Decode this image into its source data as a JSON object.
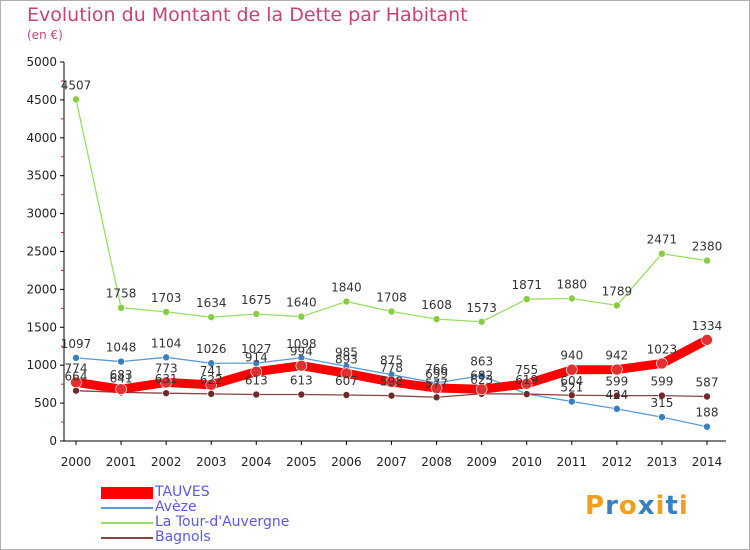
{
  "chart_data": {
    "type": "line",
    "title": "Evolution du Montant de la Dette par Habitant",
    "subtitle": "(en €)",
    "x": [
      "2000",
      "2001",
      "2002",
      "2003",
      "2004",
      "2005",
      "2006",
      "2007",
      "2008",
      "2009",
      "2010",
      "2011",
      "2012",
      "2013",
      "2014"
    ],
    "ylim": [
      0,
      5000
    ],
    "yticks": [
      0,
      500,
      1000,
      1500,
      2000,
      2500,
      3000,
      3500,
      4000,
      4500,
      5000
    ],
    "grid": false,
    "legend_position": "bottom-left",
    "series": [
      {
        "name": "TAUVES",
        "color": "#ff0000",
        "marker_color": "#e03030",
        "values": [
          774,
          683,
          773,
          741,
          914,
          994,
          893,
          778,
          699,
          682,
          755,
          940,
          942,
          1023,
          1334
        ],
        "labels": [
          "774",
          "683",
          "773",
          "741",
          "914",
          "994",
          "893",
          "778",
          "699",
          "682",
          "755",
          "940",
          "942",
          "1023",
          "1334"
        ]
      },
      {
        "name": "Avèze",
        "color": "#5a9bd5",
        "marker_color": "#3a7fc0",
        "values": [
          1097,
          1048,
          1104,
          1026,
          1027,
          1098,
          985,
          875,
          766,
          863,
          620,
          521,
          424,
          315,
          188
        ],
        "labels": [
          "1097",
          "1048",
          "1104",
          "1026",
          "1027",
          "1098",
          "985",
          "875",
          "766",
          "863",
          "",
          "521",
          "424",
          "315",
          "188"
        ]
      },
      {
        "name": "La Tour-d'Auvergne",
        "color": "#99dd66",
        "marker_color": "#88cc44",
        "values": [
          4507,
          1758,
          1703,
          1634,
          1675,
          1640,
          1840,
          1708,
          1608,
          1573,
          1871,
          1880,
          1789,
          2471,
          2380
        ],
        "labels": [
          "4507",
          "1758",
          "1703",
          "1634",
          "1675",
          "1640",
          "1840",
          "1708",
          "1608",
          "1573",
          "1871",
          "1880",
          "1789",
          "2471",
          "2380"
        ]
      },
      {
        "name": "Bagnols",
        "color": "#884444",
        "marker_color": "#702828",
        "values": [
          664,
          641,
          631,
          622,
          613,
          613,
          607,
          598,
          577,
          623,
          619,
          604,
          599,
          599,
          587
        ],
        "labels": [
          "664",
          "641",
          "631",
          "622",
          "613",
          "613",
          "607",
          "598",
          "577",
          "623",
          "619",
          "604",
          "599",
          "599",
          "587"
        ]
      }
    ]
  },
  "logo": {
    "letters": [
      "P",
      "r",
      "o",
      "x",
      "i",
      "t",
      "i"
    ],
    "colors": [
      "#f0a020",
      "#3a7fc0",
      "#f0a020",
      "#3a7fc0",
      "#f0a020",
      "#3a7fc0",
      "#f0a020"
    ]
  }
}
